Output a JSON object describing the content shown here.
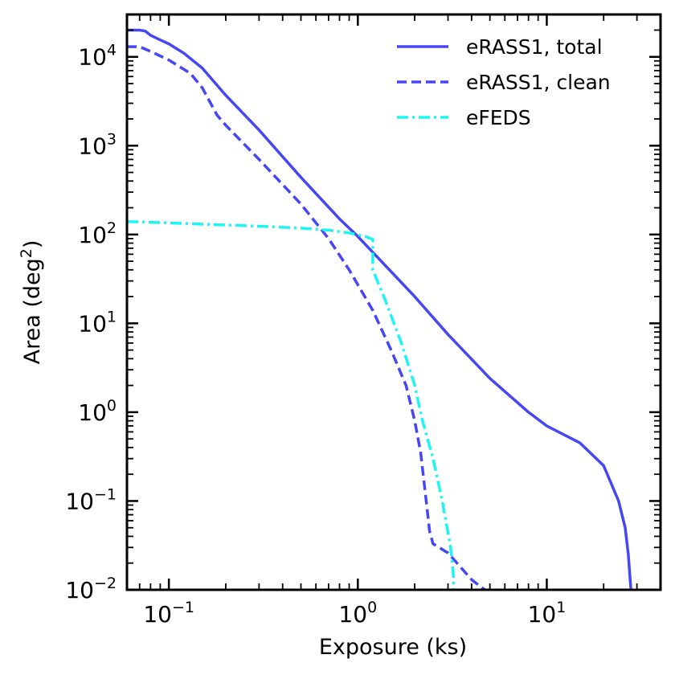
{
  "chart_data": {
    "type": "line",
    "xscale": "log",
    "yscale": "log",
    "xlabel": "Exposure (ks)",
    "ylabel_main": "Area (deg",
    "ylabel_sup": "2",
    "ylabel_close": ")",
    "xlim": [
      0.06,
      40
    ],
    "ylim": [
      0.01,
      30000
    ],
    "x_ticks": [
      {
        "value": 0.1,
        "base": "10",
        "exp": "−1"
      },
      {
        "value": 1,
        "base": "10",
        "exp": "0"
      },
      {
        "value": 10,
        "base": "10",
        "exp": "1"
      }
    ],
    "y_ticks": [
      {
        "value": 0.01,
        "base": "10",
        "exp": "−2"
      },
      {
        "value": 0.1,
        "base": "10",
        "exp": "−1"
      },
      {
        "value": 1,
        "base": "10",
        "exp": "0"
      },
      {
        "value": 10,
        "base": "10",
        "exp": "1"
      },
      {
        "value": 100,
        "base": "10",
        "exp": "2"
      },
      {
        "value": 1000,
        "base": "10",
        "exp": "3"
      },
      {
        "value": 10000,
        "base": "10",
        "exp": "4"
      }
    ],
    "legend_position": "top-right",
    "series": [
      {
        "name": "eRASS1, total",
        "color": "#4646f5",
        "style": "solid",
        "x": [
          0.06,
          0.07,
          0.075,
          0.08,
          0.09,
          0.1,
          0.12,
          0.15,
          0.2,
          0.3,
          0.5,
          0.8,
          1.0,
          2.0,
          3.0,
          5.0,
          8.0,
          10.0,
          15.0,
          20.0,
          24.0,
          26.0,
          27.0,
          27.5,
          27.9
        ],
        "y": [
          20000,
          20000,
          19500,
          17500,
          15500,
          14000,
          11000,
          7500,
          3700,
          1500,
          440,
          150,
          95,
          20,
          7.5,
          2.4,
          1.0,
          0.7,
          0.45,
          0.25,
          0.1,
          0.05,
          0.025,
          0.015,
          0.01
        ]
      },
      {
        "name": "eRASS1, clean",
        "color": "#4646f5",
        "style": "dashed",
        "x": [
          0.06,
          0.07,
          0.08,
          0.1,
          0.13,
          0.15,
          0.18,
          0.2,
          0.3,
          0.5,
          0.7,
          0.9,
          1.2,
          1.5,
          1.8,
          2.0,
          2.15,
          2.3,
          2.4,
          2.5,
          3.0,
          3.5,
          4.0,
          4.7
        ],
        "y": [
          13000,
          13000,
          11500,
          9200,
          6500,
          4500,
          2200,
          1700,
          700,
          220,
          90,
          40,
          14,
          5,
          2,
          0.8,
          0.35,
          0.1,
          0.045,
          0.033,
          0.026,
          0.018,
          0.013,
          0.01
        ]
      },
      {
        "name": "eFEDS",
        "color": "#1df5f5",
        "style": "dashdot",
        "x": [
          0.06,
          0.1,
          0.2,
          0.3,
          0.5,
          0.7,
          0.9,
          1.1,
          1.2,
          1.2,
          1.4,
          1.7,
          2.0,
          2.2,
          2.5,
          2.8,
          3.1,
          3.2,
          3.22
        ],
        "y": [
          140,
          135,
          128,
          124,
          118,
          112,
          104,
          95,
          88,
          40,
          18,
          6,
          2,
          0.8,
          0.3,
          0.1,
          0.03,
          0.015,
          0.01
        ]
      }
    ]
  }
}
